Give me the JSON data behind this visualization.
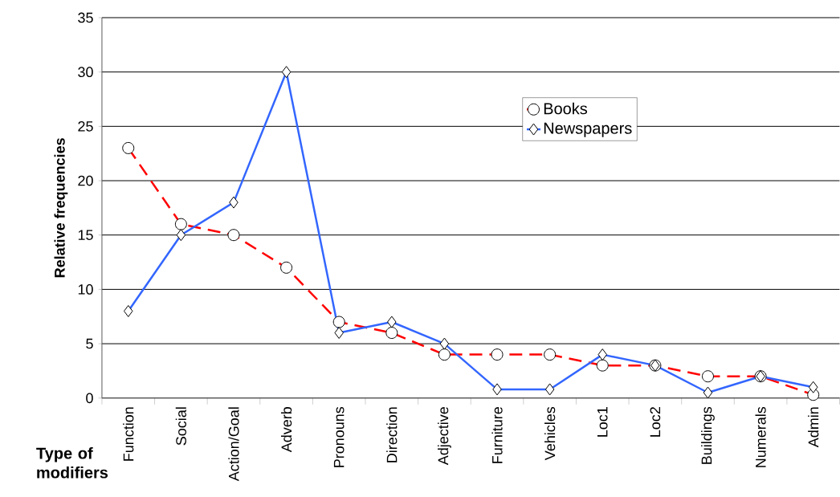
{
  "chart_data": {
    "type": "line",
    "xlabel": "Type of modifiers",
    "ylabel": "Relative frequencies",
    "categories": [
      "Function",
      "Social",
      "Action/Goal",
      "Adverb",
      "Pronouns",
      "Direction",
      "Adjective",
      "Furniture",
      "Vehicles",
      "Loc1",
      "Loc2",
      "Buildings",
      "Numerals",
      "Admin"
    ],
    "series": [
      {
        "name": "Books",
        "color": "#ff0000",
        "marker": "circle",
        "line_style": "dashed",
        "values": [
          23,
          16,
          15,
          12,
          7,
          6,
          4,
          4,
          4,
          3,
          3,
          2,
          2,
          0.3
        ]
      },
      {
        "name": "Newspapers",
        "color": "#3366ff",
        "marker": "diamond",
        "line_style": "solid",
        "values": [
          8,
          15,
          18,
          30,
          6,
          7,
          5,
          0.8,
          0.8,
          4,
          3,
          0.5,
          2,
          1
        ]
      }
    ],
    "ylim": [
      0,
      35
    ],
    "yticks": [
      0,
      5,
      10,
      15,
      20,
      25,
      30,
      35
    ],
    "grid": "y",
    "legend": "top right"
  }
}
